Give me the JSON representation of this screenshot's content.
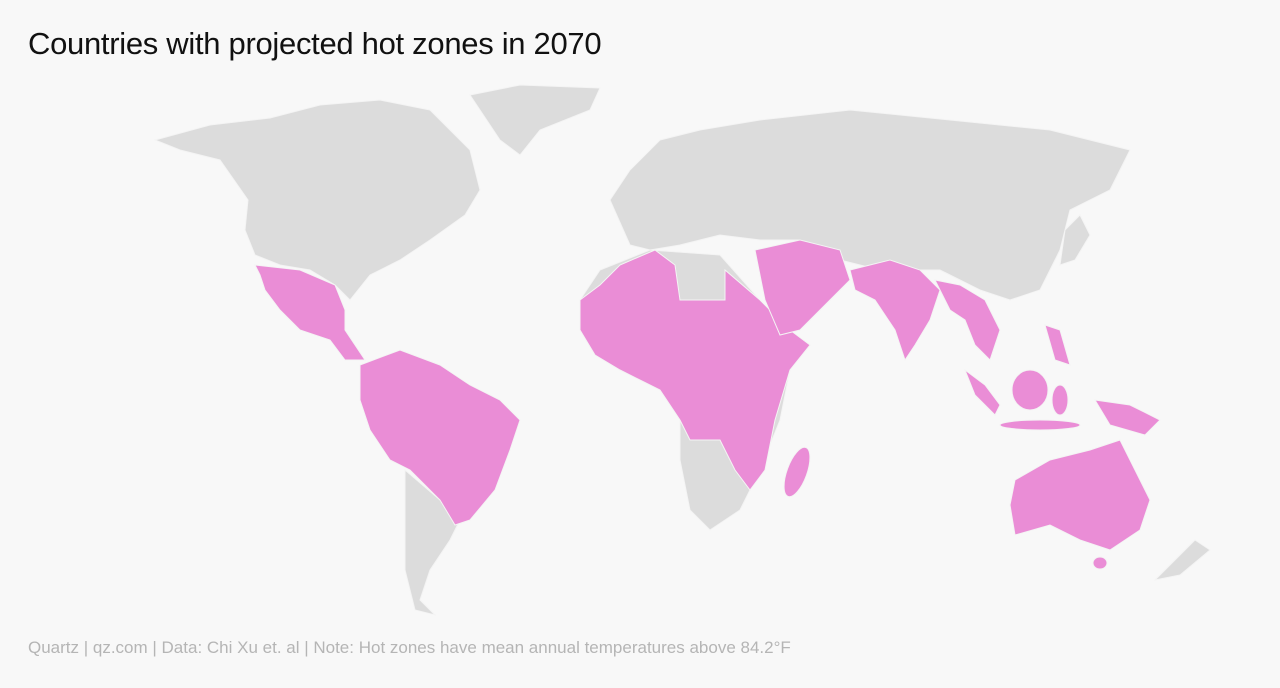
{
  "header": {
    "title": "Countries with projected hot zones in 2070"
  },
  "footer": {
    "source": "Quartz | qz.com | Data: Chi Xu et. al | Note: Hot zones have mean annual temperatures above 84.2°F"
  }
}
